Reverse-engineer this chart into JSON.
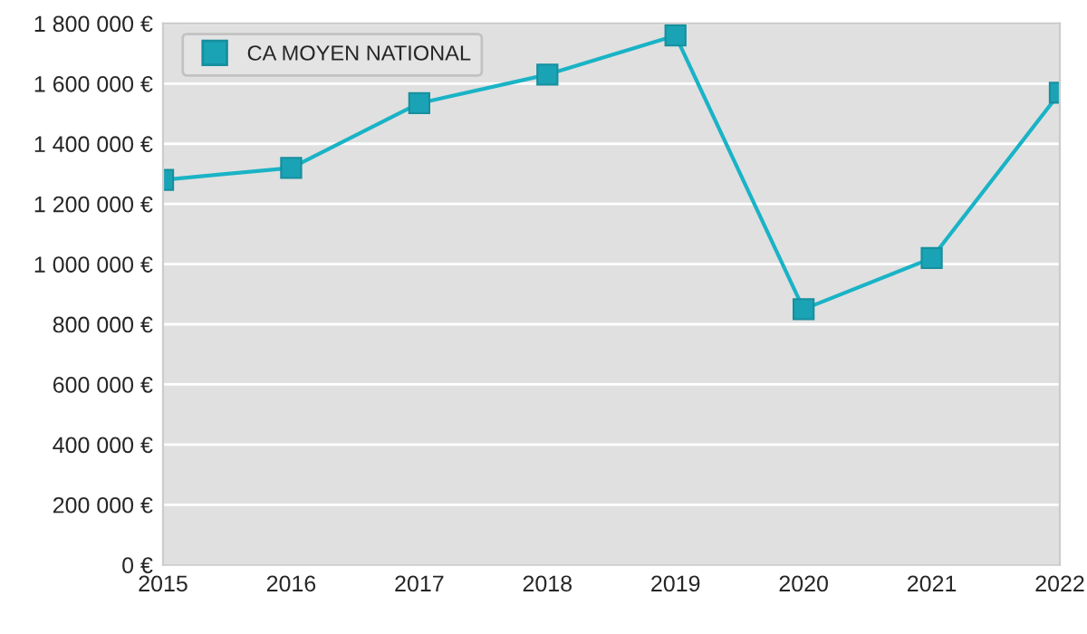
{
  "chart_data": {
    "type": "line",
    "x": [
      2015,
      2016,
      2017,
      2018,
      2019,
      2020,
      2021,
      2022
    ],
    "series": [
      {
        "name": "CA MOYEN NATIONAL",
        "color": "#1ab3c6",
        "values": [
          1280000,
          1320000,
          1535000,
          1630000,
          1760000,
          850000,
          1020000,
          1570000
        ]
      }
    ],
    "xlim": [
      2015,
      2022
    ],
    "xticks": [
      2015,
      2016,
      2017,
      2018,
      2019,
      2020,
      2021,
      2022
    ],
    "ylim": [
      0,
      1800000
    ],
    "yticks": [
      {
        "value": 0,
        "label": "0 €"
      },
      {
        "value": 200000,
        "label": "200 000 €"
      },
      {
        "value": 400000,
        "label": "400 000 €"
      },
      {
        "value": 600000,
        "label": "600 000 €"
      },
      {
        "value": 800000,
        "label": "800 000 €"
      },
      {
        "value": 1000000,
        "label": "1 000 000 €"
      },
      {
        "value": 1200000,
        "label": "1 200 000 €"
      },
      {
        "value": 1400000,
        "label": "1 400 000 €"
      },
      {
        "value": 1600000,
        "label": "1 600 000 €"
      },
      {
        "value": 1800000,
        "label": "1 800 000 €"
      }
    ],
    "grid": "y",
    "legend": "top left",
    "marker": "square",
    "line_style": "solid"
  }
}
